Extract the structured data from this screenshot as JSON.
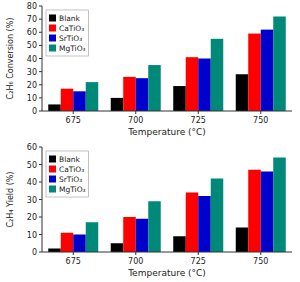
{
  "chart_data": [
    {
      "type": "bar",
      "x_label": "Temperature (°C)",
      "y_label": "C₂H₆ Conversion (%)",
      "categories": [
        "675",
        "700",
        "725",
        "750"
      ],
      "series": [
        {
          "name": "Blank",
          "color": "#000000",
          "values": [
            5,
            10,
            19,
            28
          ]
        },
        {
          "name": "CaTiO₃",
          "color": "#ff0000",
          "values": [
            17,
            26,
            41,
            59
          ]
        },
        {
          "name": "SrTiO₃",
          "color": "#0000cc",
          "values": [
            15,
            25,
            40,
            62
          ]
        },
        {
          "name": "MgTiO₃",
          "color": "#008878",
          "values": [
            22,
            35,
            55,
            72
          ]
        }
      ],
      "ylim": [
        0,
        80
      ],
      "yticks": [
        0,
        10,
        20,
        30,
        40,
        50,
        60,
        70,
        80
      ],
      "grid": false,
      "legend": "upper left"
    },
    {
      "type": "bar",
      "x_label": "Temperature (°C)",
      "y_label": "C₂H₄ Yield (%)",
      "categories": [
        "675",
        "700",
        "725",
        "750"
      ],
      "series": [
        {
          "name": "Blank",
          "color": "#000000",
          "values": [
            2,
            5,
            9,
            14
          ]
        },
        {
          "name": "CaTiO₃",
          "color": "#ff0000",
          "values": [
            11,
            20,
            34,
            47
          ]
        },
        {
          "name": "SrTiO₃",
          "color": "#0000cc",
          "values": [
            10,
            19,
            32,
            46
          ]
        },
        {
          "name": "MgTiO₃",
          "color": "#008878",
          "values": [
            17,
            29,
            42,
            54
          ]
        }
      ],
      "ylim": [
        0,
        60
      ],
      "yticks": [
        0,
        10,
        20,
        30,
        40,
        50,
        60
      ],
      "grid": false,
      "legend": "upper left"
    }
  ]
}
